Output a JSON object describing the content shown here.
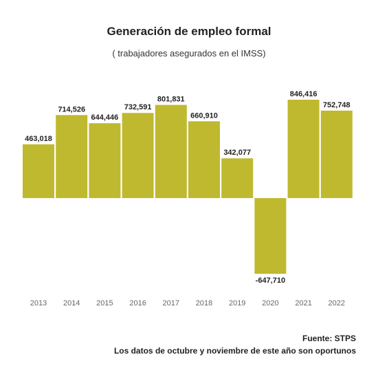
{
  "chart_data": {
    "type": "bar",
    "title": "Generación de empleo formal",
    "subtitle": "( trabajadores asegurados en el IMSS)",
    "categories": [
      "2013",
      "2014",
      "2015",
      "2016",
      "2017",
      "2018",
      "2019",
      "2020",
      "2021",
      "2022"
    ],
    "values": [
      463018,
      714526,
      644446,
      732591,
      801831,
      660910,
      342077,
      -647710,
      846416,
      752748
    ],
    "value_labels": [
      "463,018",
      "714,526",
      "644,446",
      "732,591",
      "801,831",
      "660,910",
      "342,077",
      "-647,710",
      "846,416",
      "752,748"
    ],
    "ylim": [
      -647710,
      846416
    ],
    "grid": false,
    "legend": "none",
    "bar_color": "#bfb92f"
  },
  "footer": {
    "source": "Fuente: STPS",
    "note": "Los datos de octubre y noviembre de este año son oportunos"
  }
}
